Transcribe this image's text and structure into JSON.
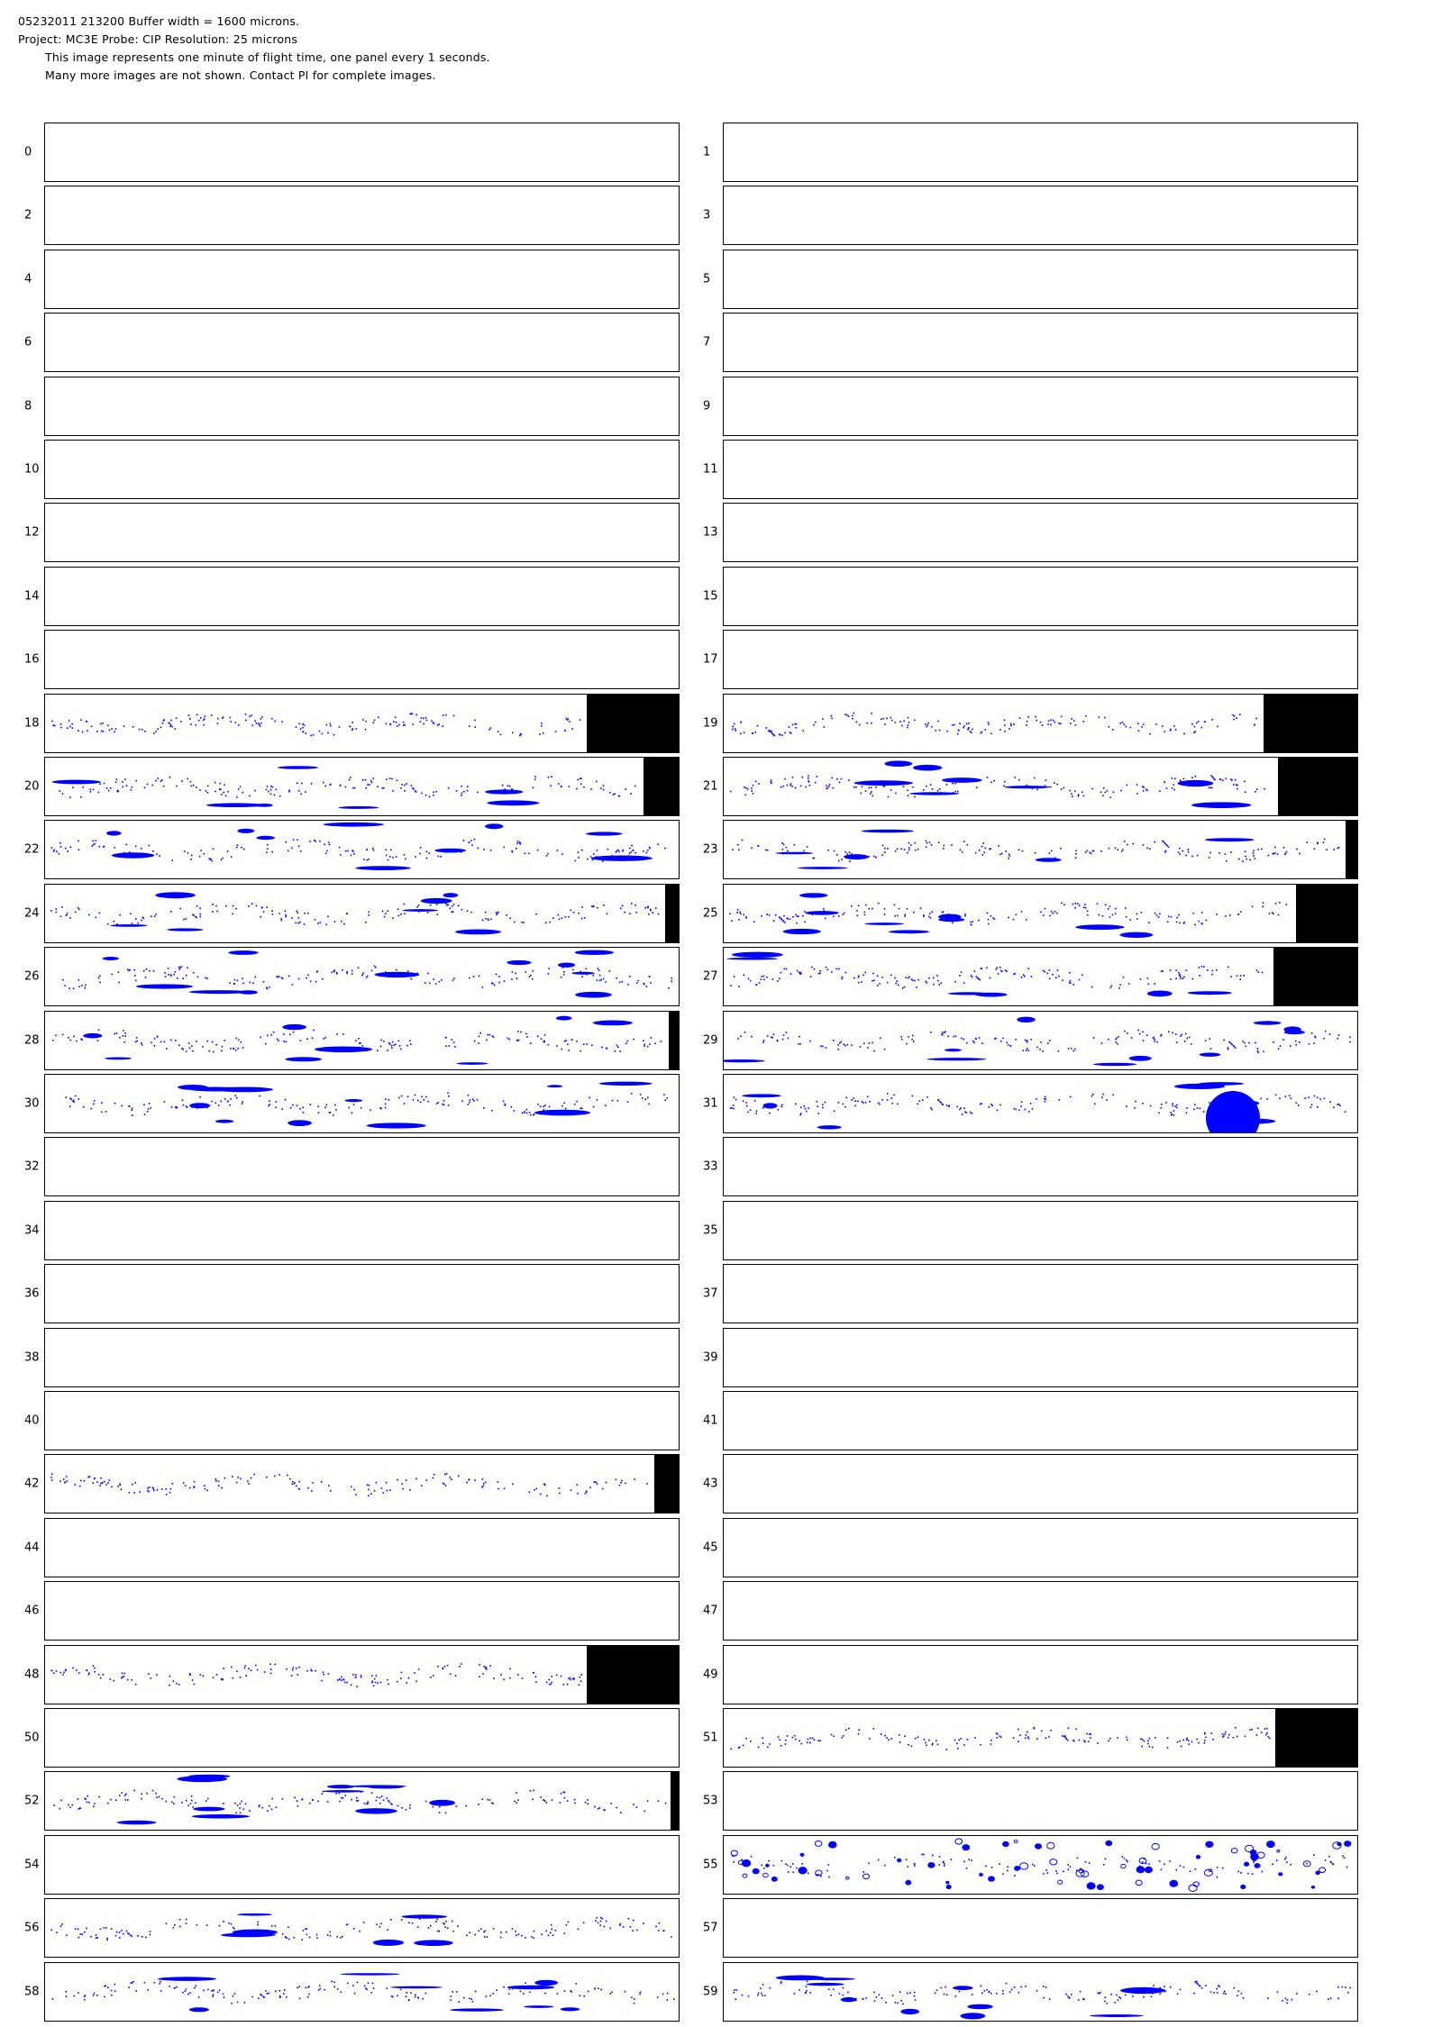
{
  "header": {
    "line1": "05232011 213200  Buffer width = 1600 microns.",
    "line2": "Project: MC3E  Probe: CIP    Resolution: 25 microns",
    "line3": "This image represents one minute of flight time, one panel every 1 seconds.",
    "line4": "Many more images are not shown.  Contact PI for complete images."
  },
  "colors": {
    "particle": "#0000ff",
    "fill": "#000000",
    "border": "#000000"
  },
  "panels": [
    {
      "index": "0",
      "activity": "none",
      "fill_fraction": 0
    },
    {
      "index": "1",
      "activity": "none",
      "fill_fraction": 0
    },
    {
      "index": "2",
      "activity": "none",
      "fill_fraction": 0
    },
    {
      "index": "3",
      "activity": "none",
      "fill_fraction": 0
    },
    {
      "index": "4",
      "activity": "none",
      "fill_fraction": 0
    },
    {
      "index": "5",
      "activity": "none",
      "fill_fraction": 0
    },
    {
      "index": "6",
      "activity": "none",
      "fill_fraction": 0
    },
    {
      "index": "7",
      "activity": "none",
      "fill_fraction": 0
    },
    {
      "index": "8",
      "activity": "none",
      "fill_fraction": 0
    },
    {
      "index": "9",
      "activity": "none",
      "fill_fraction": 0
    },
    {
      "index": "10",
      "activity": "none",
      "fill_fraction": 0
    },
    {
      "index": "11",
      "activity": "none",
      "fill_fraction": 0
    },
    {
      "index": "12",
      "activity": "none",
      "fill_fraction": 0
    },
    {
      "index": "13",
      "activity": "none",
      "fill_fraction": 0
    },
    {
      "index": "14",
      "activity": "none",
      "fill_fraction": 0
    },
    {
      "index": "15",
      "activity": "none",
      "fill_fraction": 0
    },
    {
      "index": "16",
      "activity": "none",
      "fill_fraction": 0
    },
    {
      "index": "17",
      "activity": "none",
      "fill_fraction": 0
    },
    {
      "index": "18",
      "activity": "sparse",
      "fill_fraction": 0.145
    },
    {
      "index": "19",
      "activity": "sparse",
      "fill_fraction": 0.148
    },
    {
      "index": "20",
      "activity": "moderate",
      "fill_fraction": 0.055
    },
    {
      "index": "21",
      "activity": "moderate",
      "fill_fraction": 0.125
    },
    {
      "index": "22",
      "activity": "moderate",
      "fill_fraction": 0
    },
    {
      "index": "23",
      "activity": "moderate",
      "fill_fraction": 0.018
    },
    {
      "index": "24",
      "activity": "moderate",
      "fill_fraction": 0.022
    },
    {
      "index": "25",
      "activity": "moderate",
      "fill_fraction": 0.097
    },
    {
      "index": "26",
      "activity": "moderate",
      "fill_fraction": 0
    },
    {
      "index": "27",
      "activity": "moderate",
      "fill_fraction": 0.132
    },
    {
      "index": "28",
      "activity": "moderate",
      "fill_fraction": 0.016
    },
    {
      "index": "29",
      "activity": "moderate",
      "fill_fraction": 0
    },
    {
      "index": "30",
      "activity": "moderate",
      "fill_fraction": 0
    },
    {
      "index": "31",
      "activity": "moderate",
      "fill_fraction": 0
    },
    {
      "index": "32",
      "activity": "none",
      "fill_fraction": 0
    },
    {
      "index": "33",
      "activity": "none",
      "fill_fraction": 0
    },
    {
      "index": "34",
      "activity": "none",
      "fill_fraction": 0
    },
    {
      "index": "35",
      "activity": "none",
      "fill_fraction": 0
    },
    {
      "index": "36",
      "activity": "none",
      "fill_fraction": 0
    },
    {
      "index": "37",
      "activity": "none",
      "fill_fraction": 0
    },
    {
      "index": "38",
      "activity": "none",
      "fill_fraction": 0
    },
    {
      "index": "39",
      "activity": "none",
      "fill_fraction": 0
    },
    {
      "index": "40",
      "activity": "none",
      "fill_fraction": 0
    },
    {
      "index": "41",
      "activity": "none",
      "fill_fraction": 0
    },
    {
      "index": "42",
      "activity": "sparse",
      "fill_fraction": 0.038
    },
    {
      "index": "43",
      "activity": "none",
      "fill_fraction": 0
    },
    {
      "index": "44",
      "activity": "none",
      "fill_fraction": 0
    },
    {
      "index": "45",
      "activity": "none",
      "fill_fraction": 0
    },
    {
      "index": "46",
      "activity": "none",
      "fill_fraction": 0
    },
    {
      "index": "47",
      "activity": "none",
      "fill_fraction": 0
    },
    {
      "index": "48",
      "activity": "sparse",
      "fill_fraction": 0.145
    },
    {
      "index": "49",
      "activity": "none",
      "fill_fraction": 0
    },
    {
      "index": "50",
      "activity": "none",
      "fill_fraction": 0
    },
    {
      "index": "51",
      "activity": "sparse",
      "fill_fraction": 0.13
    },
    {
      "index": "52",
      "activity": "moderate",
      "fill_fraction": 0.013
    },
    {
      "index": "53",
      "activity": "none",
      "fill_fraction": 0
    },
    {
      "index": "54",
      "activity": "none",
      "fill_fraction": 0
    },
    {
      "index": "55",
      "activity": "dense",
      "fill_fraction": 0
    },
    {
      "index": "56",
      "activity": "moderate",
      "fill_fraction": 0
    },
    {
      "index": "57",
      "activity": "none",
      "fill_fraction": 0
    },
    {
      "index": "58",
      "activity": "moderate",
      "fill_fraction": 0
    },
    {
      "index": "59",
      "activity": "moderate",
      "fill_fraction": 0
    }
  ]
}
